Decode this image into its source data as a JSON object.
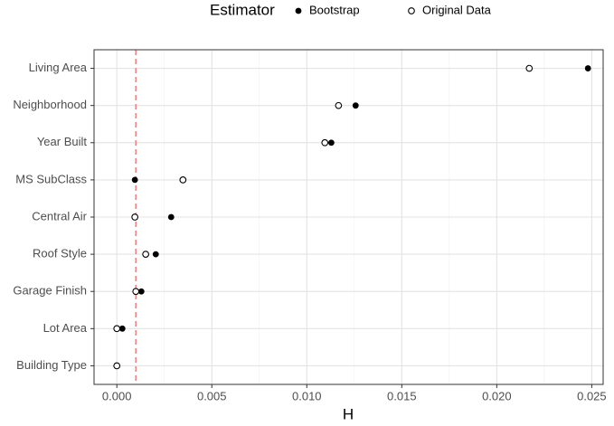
{
  "chart_data": {
    "type": "dotplot",
    "legend_title": "Estimator",
    "x_label": "H",
    "categories": [
      "Living Area",
      "Neighborhood",
      "Year Built",
      "MS SubClass",
      "Central Air",
      "Roof Style",
      "Garage Finish",
      "Lot Area",
      "Building Type"
    ],
    "series": [
      {
        "name": "Bootstrap",
        "color": "#000000",
        "marker": "filled",
        "values": [
          0.0248,
          0.01257,
          0.01129,
          0.00095,
          0.00286,
          0.00205,
          0.00129,
          0.00029,
          0
        ]
      },
      {
        "name": "Original Data",
        "color": "#000000",
        "marker": "open",
        "values": [
          0.02171,
          0.01167,
          0.01095,
          0.00348,
          0.00095,
          0.00152,
          0.001,
          0,
          0
        ]
      }
    ],
    "reference_line": {
      "value": 0.001,
      "color": "#f08080"
    },
    "xlim": [
      -0.0012,
      0.0256
    ],
    "xticks": [
      {
        "value": 0,
        "label": "0.000"
      },
      {
        "value": 0.005,
        "label": "0.005"
      },
      {
        "value": 0.01,
        "label": "0.010"
      },
      {
        "value": 0.015,
        "label": "0.015"
      },
      {
        "value": 0.02,
        "label": "0.020"
      },
      {
        "value": 0.025,
        "label": "0.025"
      }
    ],
    "grid": true
  }
}
